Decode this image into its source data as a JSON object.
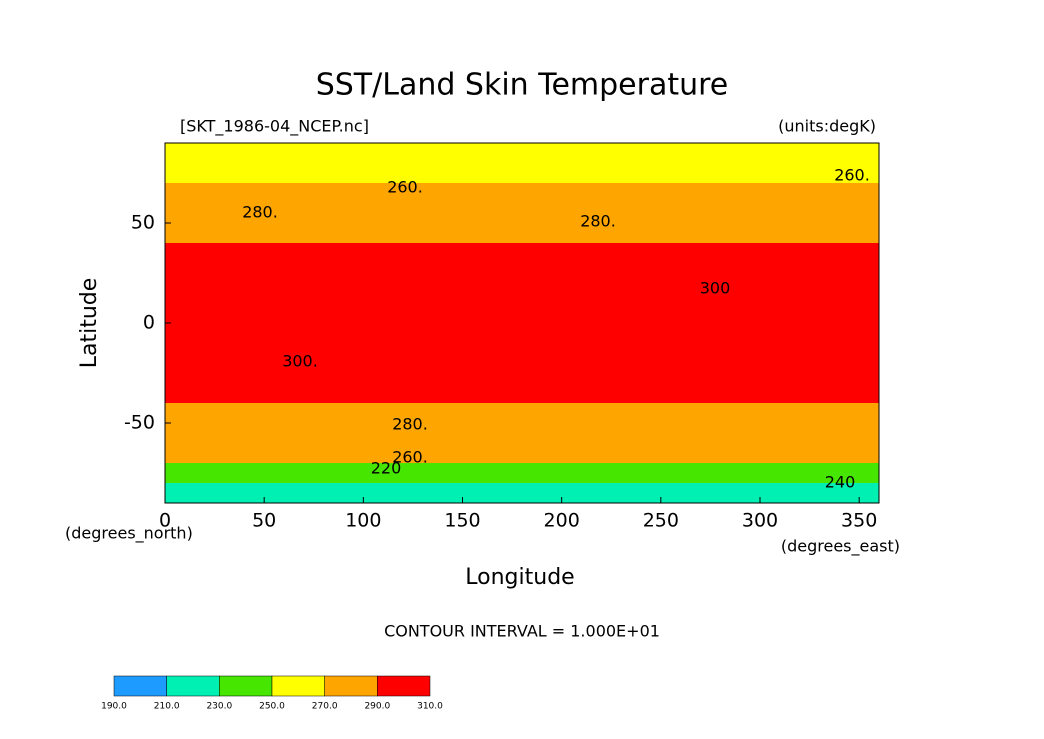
{
  "chart_data": {
    "type": "contour",
    "title": "SST/Land Skin Temperature",
    "subtitle": "[SKT_1986-04_NCEP.nc]",
    "units": "(units:degK)",
    "x_label": "Longitude",
    "y_label": "Latitude",
    "x_units": "(degrees_east)",
    "y_units": "(degrees_north)",
    "footer": "CONTOUR INTERVAL = 1.000E+01",
    "xlim": [
      0,
      360
    ],
    "xticks": [
      0,
      50,
      100,
      150,
      200,
      250,
      300,
      350
    ],
    "ylim": [
      -90,
      90
    ],
    "yticks": [
      -50,
      0,
      50
    ],
    "lat": [
      85,
      75,
      65,
      55,
      45,
      35,
      25,
      15,
      5,
      -5,
      -15,
      -25,
      -35,
      -45,
      -55,
      -65,
      -75,
      -85
    ],
    "values": [
      250,
      265,
      275,
      280,
      285,
      295,
      300,
      302,
      302,
      302,
      300,
      298,
      295,
      285,
      280,
      275,
      240,
      225
    ],
    "levels": [
      {
        "value": 190,
        "label": "190.0"
      },
      {
        "value": 210,
        "label": "210.0"
      },
      {
        "value": 230,
        "label": "230.0"
      },
      {
        "value": 250,
        "label": "250.0"
      },
      {
        "value": 270,
        "label": "270.0"
      },
      {
        "value": 290,
        "label": "290.0"
      },
      {
        "value": 310,
        "label": "310.0"
      }
    ],
    "colors": [
      "#1e9bff",
      "#00f0b4",
      "#46e600",
      "#ffff00",
      "#ffa500",
      "#ff0000"
    ],
    "contour_labels": [
      {
        "value": 260,
        "label": "260."
      },
      {
        "value": 280,
        "label": "280."
      },
      {
        "value": 280,
        "label": "280."
      },
      {
        "value": 260,
        "label": "260."
      },
      {
        "value": 300,
        "label": "300."
      },
      {
        "value": 300,
        "label": "300"
      },
      {
        "value": 280,
        "label": "280."
      },
      {
        "value": 260,
        "label": "260."
      },
      {
        "value": 220,
        "label": "220"
      },
      {
        "value": 240,
        "label": "240"
      }
    ]
  }
}
